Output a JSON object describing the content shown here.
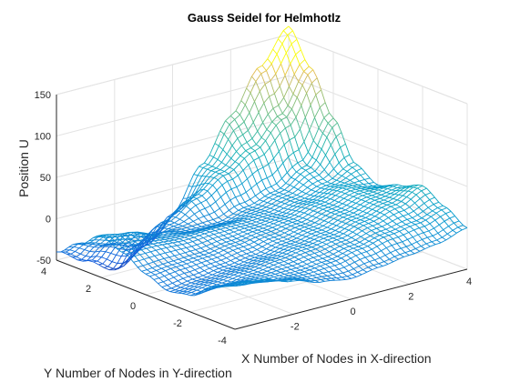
{
  "chart_data": {
    "type": "surface",
    "render": "mesh",
    "colormap": "parula",
    "title": "Gauss Seidel for Helmhotlz",
    "xlabel": "X Number of Nodes in X-direction",
    "ylabel": "Y Number of Nodes in Y-direction",
    "zlabel": "Position U",
    "xlim": [
      -4,
      4
    ],
    "ylim": [
      -4,
      4
    ],
    "zlim": [
      -50,
      150
    ],
    "xticks": [
      "-2",
      "0",
      "2",
      "4"
    ],
    "yticks": [
      "-4",
      "-2",
      "0",
      "2",
      "4"
    ],
    "zticks": [
      "-50",
      "0",
      "50",
      "100",
      "150"
    ],
    "grid": true,
    "view": {
      "azimuth": -37.5,
      "elevation": 30
    },
    "x": [
      -4,
      -3,
      -2,
      -1,
      0,
      1,
      2,
      3,
      4
    ],
    "y": [
      -4,
      -3,
      -2,
      -1,
      0,
      1,
      2,
      3,
      4
    ],
    "z": [
      [
        5,
        -10,
        -30,
        -35,
        -25,
        -10,
        0,
        -20,
        -40
      ],
      [
        0,
        -15,
        -25,
        -30,
        -22,
        -10,
        -5,
        -30,
        -60
      ],
      [
        -10,
        -18,
        -20,
        -25,
        -20,
        -12,
        -15,
        -40,
        -80
      ],
      [
        -20,
        -18,
        -15,
        -20,
        -15,
        -10,
        -20,
        -20,
        -60
      ],
      [
        -25,
        -15,
        -10,
        -12,
        -10,
        -10,
        -20,
        0,
        -30
      ],
      [
        -20,
        -8,
        -5,
        -5,
        -5,
        -8,
        -10,
        20,
        20
      ],
      [
        -15,
        0,
        5,
        5,
        5,
        0,
        0,
        40,
        70
      ],
      [
        -10,
        5,
        15,
        15,
        15,
        10,
        20,
        70,
        120
      ],
      [
        0,
        15,
        30,
        20,
        10,
        25,
        70,
        120,
        160
      ]
    ]
  }
}
